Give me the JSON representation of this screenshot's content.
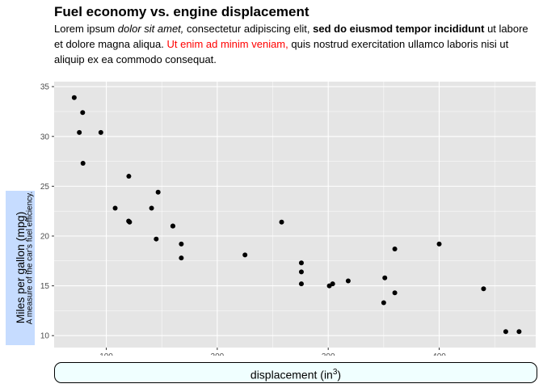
{
  "chart_data": {
    "type": "scatter",
    "title": "Fuel economy vs. engine displacement",
    "subtitle": {
      "segments": [
        {
          "text": "Lorem ipsum ",
          "style": "normal"
        },
        {
          "text": "dolor sit amet,",
          "style": "italic"
        },
        {
          "text": " consectetur adipiscing elit, ",
          "style": "normal"
        },
        {
          "text": "sed do eiusmod tempor incididunt",
          "style": "bold"
        },
        {
          "text": " ut labore et dolore magna aliqua. ",
          "style": "normal"
        },
        {
          "text": "Ut enim ad minim veniam,",
          "style": "red"
        },
        {
          "text": " quis nostrud exercitation ullamco laboris nisi ut aliquip ex ea commodo consequat.",
          "style": "normal"
        }
      ]
    },
    "xlabel": "displacement (in",
    "xlabel_superscript": "3",
    "xlabel_suffix": ")",
    "ylabel": "Miles per gallon (mpg)",
    "ylabel_subtitle": "A measure of the car's fuel efficiency.",
    "xlim": [
      53,
      487
    ],
    "ylim": [
      8.8,
      35.5
    ],
    "xticks": [
      100,
      200,
      300,
      400
    ],
    "yticks": [
      10,
      15,
      20,
      25,
      30,
      35
    ],
    "grid": true,
    "colors": {
      "panel_background": "#e5e5e5",
      "grid_major": "#ffffff",
      "points": "#000000",
      "ylabel_box": "#c6dcff",
      "xlabel_box": "#f0ffff",
      "subtitle_highlight": "#ff0000"
    },
    "points": [
      {
        "x": 71.1,
        "y": 33.9
      },
      {
        "x": 75.7,
        "y": 30.4
      },
      {
        "x": 78.7,
        "y": 32.4
      },
      {
        "x": 79.0,
        "y": 27.3
      },
      {
        "x": 95.1,
        "y": 30.4
      },
      {
        "x": 108.0,
        "y": 22.8
      },
      {
        "x": 120.1,
        "y": 21.5
      },
      {
        "x": 120.3,
        "y": 26.0
      },
      {
        "x": 121.0,
        "y": 21.4
      },
      {
        "x": 140.8,
        "y": 22.8
      },
      {
        "x": 145.0,
        "y": 19.7
      },
      {
        "x": 146.7,
        "y": 24.4
      },
      {
        "x": 160.0,
        "y": 21.0
      },
      {
        "x": 160.0,
        "y": 21.0
      },
      {
        "x": 167.6,
        "y": 19.2
      },
      {
        "x": 167.6,
        "y": 17.8
      },
      {
        "x": 225.0,
        "y": 18.1
      },
      {
        "x": 258.0,
        "y": 21.4
      },
      {
        "x": 275.8,
        "y": 16.4
      },
      {
        "x": 275.8,
        "y": 17.3
      },
      {
        "x": 275.8,
        "y": 15.2
      },
      {
        "x": 301.0,
        "y": 15.0
      },
      {
        "x": 304.0,
        "y": 15.2
      },
      {
        "x": 318.0,
        "y": 15.5
      },
      {
        "x": 350.0,
        "y": 13.3
      },
      {
        "x": 351.0,
        "y": 15.8
      },
      {
        "x": 360.0,
        "y": 18.7
      },
      {
        "x": 360.0,
        "y": 14.3
      },
      {
        "x": 400.0,
        "y": 19.2
      },
      {
        "x": 440.0,
        "y": 14.7
      },
      {
        "x": 460.0,
        "y": 10.4
      },
      {
        "x": 472.0,
        "y": 10.4
      }
    ]
  }
}
